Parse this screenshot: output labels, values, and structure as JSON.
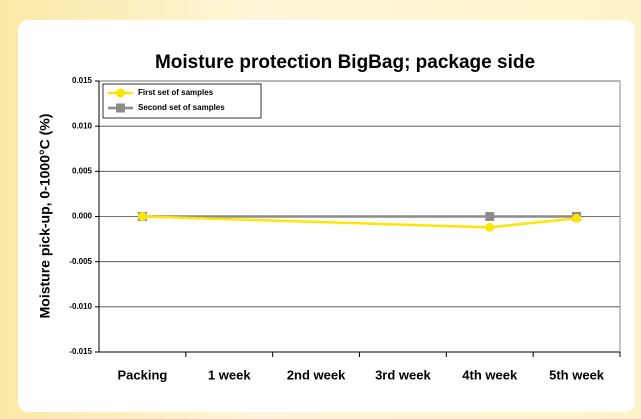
{
  "chart_data": {
    "type": "line",
    "title": "Moisture protection BigBag; package side",
    "y_label": "Moisture pick-up, 0-1000°C (%)",
    "categories": [
      "Packing",
      "1 week",
      "2nd week",
      "3rd week",
      "4th week",
      "5th week"
    ],
    "series": [
      {
        "name": "First set of samples",
        "color": "#ffe600",
        "values": [
          0,
          null,
          null,
          null,
          -0.0012,
          -0.0002
        ]
      },
      {
        "name": "Second set of samples",
        "color": "#8c8c8c",
        "values": [
          0,
          null,
          null,
          null,
          0,
          0
        ]
      }
    ],
    "connect_gaps": true,
    "ylim": [
      -0.015,
      0.015
    ],
    "yticks": [
      0.015,
      {
        "value": 0.01,
        "label": "0.010"
      },
      0.005,
      {
        "value": 0,
        "label": "0.000"
      },
      -0.005,
      {
        "value": -0.01,
        "label": "-0.010"
      },
      -0.015
    ],
    "grid": true,
    "legend": "top-left"
  }
}
